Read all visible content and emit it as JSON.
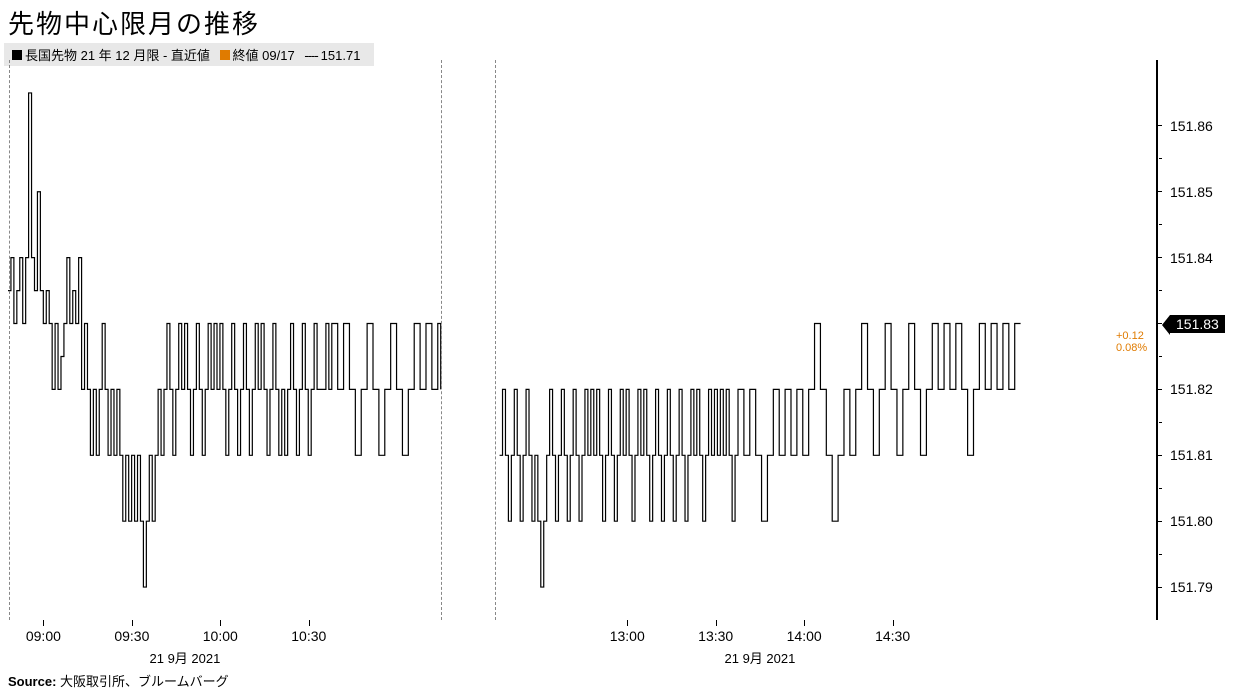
{
  "title": "先物中心限月の推移",
  "legend": {
    "series1": {
      "marker_color": "#000000",
      "label": "長国先物 21 年 12 月限 - 直近値"
    },
    "series2": {
      "marker_color": "#e07b00",
      "label": "終値 09/17"
    },
    "series3": {
      "marker_style": "dash",
      "label": "151.71"
    }
  },
  "chart": {
    "type": "step-line",
    "line_color": "#000000",
    "line_width": 1.2,
    "background_color": "#ffffff",
    "divider_color": "#888888",
    "y_axis": {
      "min": 151.785,
      "max": 151.87,
      "ticks": [
        151.79,
        151.8,
        151.81,
        151.82,
        151.83,
        151.84,
        151.85,
        151.86
      ],
      "tick_labels": [
        "151.79",
        "151.80",
        "151.81",
        "151.82",
        "151.83",
        "151.84",
        "151.85",
        "151.86"
      ],
      "label_fontsize": 14
    },
    "x_axis": {
      "min_t": 0,
      "max_t": 390,
      "ticks": [
        {
          "t": 12,
          "label": "09:00"
        },
        {
          "t": 42,
          "label": "09:30"
        },
        {
          "t": 72,
          "label": "10:00"
        },
        {
          "t": 102,
          "label": "10:30"
        },
        {
          "t": 210,
          "label": "13:00"
        },
        {
          "t": 240,
          "label": "13:30"
        },
        {
          "t": 270,
          "label": "14:00"
        },
        {
          "t": 300,
          "label": "14:30"
        }
      ],
      "date_labels": [
        {
          "t": 60,
          "label": "21 9月 2021"
        },
        {
          "t": 255,
          "label": "21 9月 2021"
        }
      ],
      "session_break_start": 147,
      "session_break_end": 165
    },
    "last_value": 151.83,
    "last_value_label": "151.83",
    "change_abs": "+0.12",
    "change_pct": "0.08%",
    "change_color": "#e07b00",
    "prev_close": 151.71,
    "series": [
      [
        0,
        151.835
      ],
      [
        1,
        151.84
      ],
      [
        2,
        151.83
      ],
      [
        3,
        151.835
      ],
      [
        4,
        151.84
      ],
      [
        5,
        151.83
      ],
      [
        6,
        151.84
      ],
      [
        7,
        151.865
      ],
      [
        8,
        151.84
      ],
      [
        9,
        151.835
      ],
      [
        10,
        151.85
      ],
      [
        11,
        151.835
      ],
      [
        12,
        151.83
      ],
      [
        13,
        151.835
      ],
      [
        14,
        151.83
      ],
      [
        15,
        151.82
      ],
      [
        16,
        151.83
      ],
      [
        17,
        151.82
      ],
      [
        18,
        151.825
      ],
      [
        19,
        151.83
      ],
      [
        20,
        151.84
      ],
      [
        21,
        151.83
      ],
      [
        22,
        151.835
      ],
      [
        23,
        151.83
      ],
      [
        24,
        151.84
      ],
      [
        25,
        151.82
      ],
      [
        26,
        151.83
      ],
      [
        27,
        151.82
      ],
      [
        28,
        151.81
      ],
      [
        29,
        151.82
      ],
      [
        30,
        151.81
      ],
      [
        31,
        151.82
      ],
      [
        32,
        151.83
      ],
      [
        33,
        151.82
      ],
      [
        34,
        151.81
      ],
      [
        35,
        151.82
      ],
      [
        36,
        151.81
      ],
      [
        37,
        151.82
      ],
      [
        38,
        151.81
      ],
      [
        39,
        151.8
      ],
      [
        40,
        151.81
      ],
      [
        41,
        151.8
      ],
      [
        42,
        151.81
      ],
      [
        43,
        151.8
      ],
      [
        44,
        151.81
      ],
      [
        45,
        151.8
      ],
      [
        46,
        151.79
      ],
      [
        47,
        151.8
      ],
      [
        48,
        151.81
      ],
      [
        49,
        151.8
      ],
      [
        50,
        151.81
      ],
      [
        51,
        151.82
      ],
      [
        52,
        151.81
      ],
      [
        53,
        151.82
      ],
      [
        54,
        151.83
      ],
      [
        55,
        151.82
      ],
      [
        56,
        151.81
      ],
      [
        57,
        151.82
      ],
      [
        58,
        151.83
      ],
      [
        59,
        151.82
      ],
      [
        60,
        151.83
      ],
      [
        61,
        151.82
      ],
      [
        62,
        151.81
      ],
      [
        63,
        151.82
      ],
      [
        64,
        151.83
      ],
      [
        65,
        151.82
      ],
      [
        66,
        151.81
      ],
      [
        67,
        151.82
      ],
      [
        68,
        151.83
      ],
      [
        69,
        151.82
      ],
      [
        70,
        151.83
      ],
      [
        71,
        151.82
      ],
      [
        72,
        151.83
      ],
      [
        73,
        151.82
      ],
      [
        74,
        151.81
      ],
      [
        75,
        151.82
      ],
      [
        76,
        151.83
      ],
      [
        77,
        151.82
      ],
      [
        78,
        151.81
      ],
      [
        79,
        151.82
      ],
      [
        80,
        151.83
      ],
      [
        81,
        151.82
      ],
      [
        82,
        151.81
      ],
      [
        83,
        151.82
      ],
      [
        84,
        151.83
      ],
      [
        85,
        151.82
      ],
      [
        86,
        151.83
      ],
      [
        87,
        151.82
      ],
      [
        88,
        151.81
      ],
      [
        89,
        151.82
      ],
      [
        90,
        151.83
      ],
      [
        91,
        151.82
      ],
      [
        92,
        151.81
      ],
      [
        93,
        151.82
      ],
      [
        94,
        151.81
      ],
      [
        95,
        151.82
      ],
      [
        96,
        151.83
      ],
      [
        97,
        151.82
      ],
      [
        98,
        151.81
      ],
      [
        99,
        151.82
      ],
      [
        100,
        151.83
      ],
      [
        101,
        151.82
      ],
      [
        102,
        151.81
      ],
      [
        103,
        151.82
      ],
      [
        104,
        151.83
      ],
      [
        105,
        151.82
      ],
      [
        106,
        151.82
      ],
      [
        107,
        151.82
      ],
      [
        108,
        151.83
      ],
      [
        109,
        151.82
      ],
      [
        110,
        151.83
      ],
      [
        112,
        151.82
      ],
      [
        114,
        151.83
      ],
      [
        116,
        151.82
      ],
      [
        118,
        151.81
      ],
      [
        120,
        151.82
      ],
      [
        122,
        151.83
      ],
      [
        124,
        151.82
      ],
      [
        126,
        151.81
      ],
      [
        128,
        151.82
      ],
      [
        130,
        151.83
      ],
      [
        132,
        151.82
      ],
      [
        134,
        151.81
      ],
      [
        136,
        151.82
      ],
      [
        138,
        151.83
      ],
      [
        140,
        151.82
      ],
      [
        142,
        151.83
      ],
      [
        144,
        151.82
      ],
      [
        146,
        151.83
      ],
      [
        147,
        151.82
      ],
      [
        167,
        151.81
      ],
      [
        168,
        151.82
      ],
      [
        169,
        151.81
      ],
      [
        170,
        151.8
      ],
      [
        171,
        151.81
      ],
      [
        172,
        151.82
      ],
      [
        173,
        151.81
      ],
      [
        174,
        151.8
      ],
      [
        175,
        151.81
      ],
      [
        176,
        151.82
      ],
      [
        177,
        151.81
      ],
      [
        178,
        151.8
      ],
      [
        179,
        151.81
      ],
      [
        180,
        151.8
      ],
      [
        181,
        151.79
      ],
      [
        182,
        151.8
      ],
      [
        183,
        151.81
      ],
      [
        184,
        151.82
      ],
      [
        185,
        151.81
      ],
      [
        186,
        151.8
      ],
      [
        187,
        151.81
      ],
      [
        188,
        151.82
      ],
      [
        189,
        151.81
      ],
      [
        190,
        151.8
      ],
      [
        191,
        151.81
      ],
      [
        192,
        151.82
      ],
      [
        193,
        151.81
      ],
      [
        194,
        151.8
      ],
      [
        195,
        151.81
      ],
      [
        196,
        151.82
      ],
      [
        197,
        151.81
      ],
      [
        198,
        151.82
      ],
      [
        199,
        151.81
      ],
      [
        200,
        151.82
      ],
      [
        201,
        151.81
      ],
      [
        202,
        151.8
      ],
      [
        203,
        151.81
      ],
      [
        204,
        151.82
      ],
      [
        205,
        151.81
      ],
      [
        206,
        151.8
      ],
      [
        207,
        151.81
      ],
      [
        208,
        151.82
      ],
      [
        209,
        151.81
      ],
      [
        210,
        151.82
      ],
      [
        211,
        151.81
      ],
      [
        212,
        151.8
      ],
      [
        213,
        151.81
      ],
      [
        214,
        151.82
      ],
      [
        215,
        151.81
      ],
      [
        216,
        151.82
      ],
      [
        217,
        151.81
      ],
      [
        218,
        151.8
      ],
      [
        219,
        151.81
      ],
      [
        220,
        151.82
      ],
      [
        221,
        151.81
      ],
      [
        222,
        151.8
      ],
      [
        223,
        151.81
      ],
      [
        224,
        151.82
      ],
      [
        225,
        151.81
      ],
      [
        226,
        151.8
      ],
      [
        227,
        151.81
      ],
      [
        228,
        151.82
      ],
      [
        229,
        151.81
      ],
      [
        230,
        151.8
      ],
      [
        231,
        151.81
      ],
      [
        232,
        151.82
      ],
      [
        233,
        151.81
      ],
      [
        234,
        151.82
      ],
      [
        235,
        151.81
      ],
      [
        236,
        151.8
      ],
      [
        237,
        151.81
      ],
      [
        238,
        151.82
      ],
      [
        239,
        151.81
      ],
      [
        240,
        151.82
      ],
      [
        241,
        151.81
      ],
      [
        242,
        151.82
      ],
      [
        243,
        151.81
      ],
      [
        244,
        151.82
      ],
      [
        245,
        151.81
      ],
      [
        246,
        151.8
      ],
      [
        247,
        151.81
      ],
      [
        248,
        151.82
      ],
      [
        250,
        151.81
      ],
      [
        252,
        151.82
      ],
      [
        254,
        151.81
      ],
      [
        256,
        151.8
      ],
      [
        258,
        151.81
      ],
      [
        260,
        151.82
      ],
      [
        262,
        151.81
      ],
      [
        264,
        151.82
      ],
      [
        266,
        151.81
      ],
      [
        268,
        151.82
      ],
      [
        270,
        151.81
      ],
      [
        272,
        151.82
      ],
      [
        274,
        151.83
      ],
      [
        276,
        151.82
      ],
      [
        278,
        151.81
      ],
      [
        280,
        151.8
      ],
      [
        282,
        151.81
      ],
      [
        284,
        151.82
      ],
      [
        286,
        151.81
      ],
      [
        288,
        151.82
      ],
      [
        290,
        151.83
      ],
      [
        292,
        151.82
      ],
      [
        294,
        151.81
      ],
      [
        296,
        151.82
      ],
      [
        298,
        151.83
      ],
      [
        300,
        151.82
      ],
      [
        302,
        151.81
      ],
      [
        304,
        151.82
      ],
      [
        306,
        151.83
      ],
      [
        308,
        151.82
      ],
      [
        310,
        151.81
      ],
      [
        312,
        151.82
      ],
      [
        314,
        151.83
      ],
      [
        316,
        151.82
      ],
      [
        318,
        151.83
      ],
      [
        320,
        151.82
      ],
      [
        322,
        151.83
      ],
      [
        324,
        151.82
      ],
      [
        326,
        151.81
      ],
      [
        328,
        151.82
      ],
      [
        330,
        151.83
      ],
      [
        332,
        151.82
      ],
      [
        334,
        151.83
      ],
      [
        336,
        151.82
      ],
      [
        338,
        151.83
      ],
      [
        340,
        151.82
      ],
      [
        342,
        151.83
      ],
      [
        344,
        151.83
      ]
    ]
  },
  "source": {
    "label": "Source:",
    "text": "大阪取引所、ブルームバーグ"
  }
}
